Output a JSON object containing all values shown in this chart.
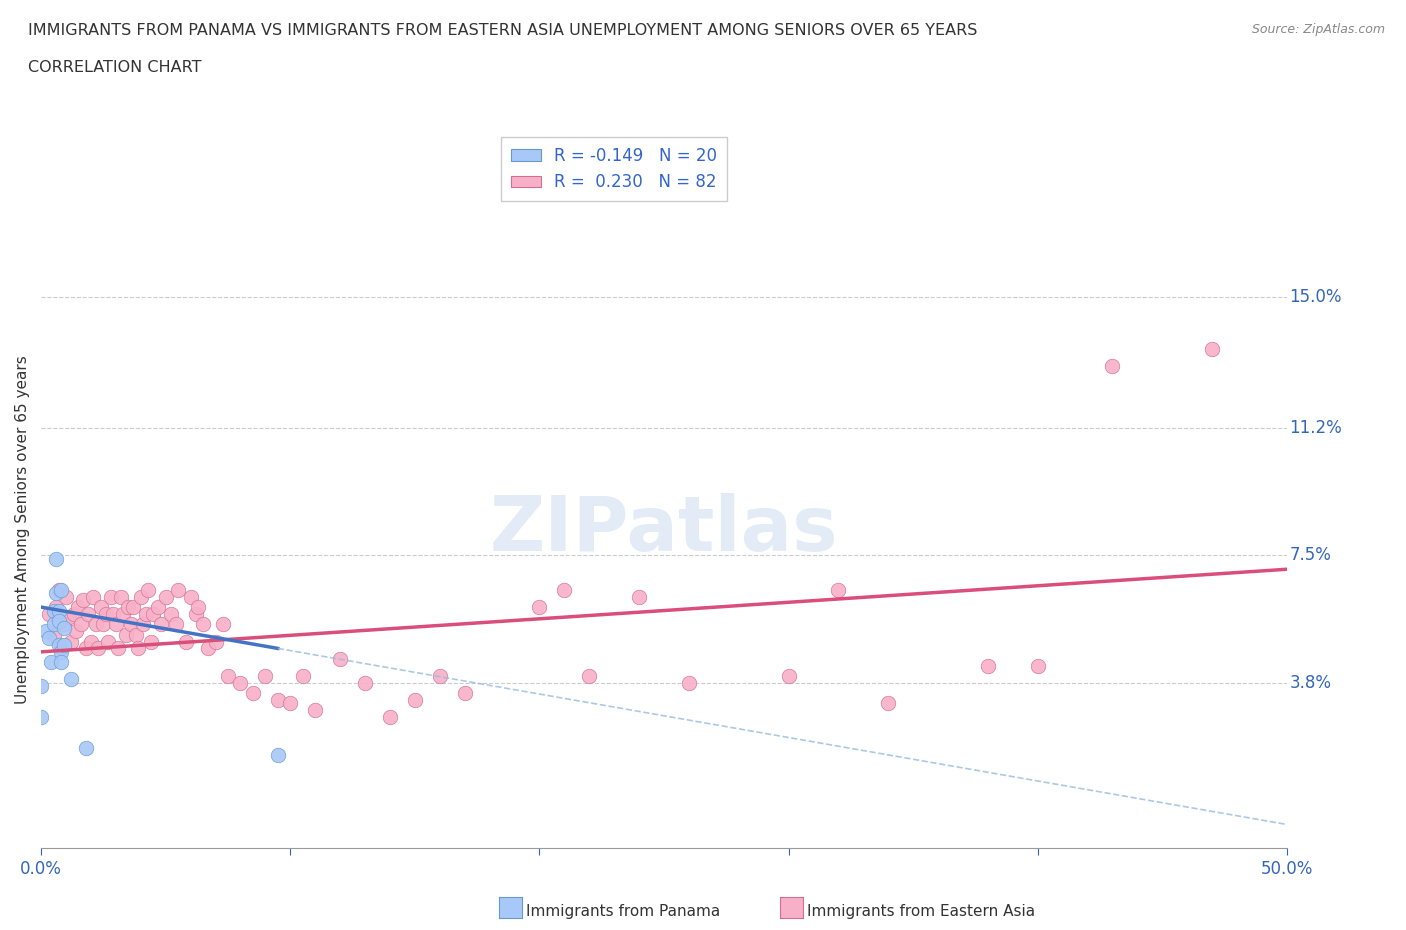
{
  "title_line1": "IMMIGRANTS FROM PANAMA VS IMMIGRANTS FROM EASTERN ASIA UNEMPLOYMENT AMONG SENIORS OVER 65 YEARS",
  "title_line2": "CORRELATION CHART",
  "source_text": "Source: ZipAtlas.com",
  "ylabel": "Unemployment Among Seniors over 65 years",
  "xlim": [
    0.0,
    0.5
  ],
  "ylim": [
    -0.01,
    0.175
  ],
  "ytick_positions": [
    0.038,
    0.075,
    0.112,
    0.15
  ],
  "ytick_labels": [
    "3.8%",
    "7.5%",
    "11.2%",
    "15.0%"
  ],
  "watermark": "ZIPatlas",
  "panama_color": "#a8c8f8",
  "panama_edge_color": "#6699cc",
  "eastern_color": "#f8b0c8",
  "eastern_edge_color": "#d07090",
  "panama_line_color": "#4472c4",
  "panama_dash_color": "#99bbdd",
  "eastern_line_color": "#d94f7a",
  "grid_color": "#cccccc",
  "panama_scatter_x": [
    0.0,
    0.0,
    0.002,
    0.003,
    0.004,
    0.005,
    0.005,
    0.006,
    0.006,
    0.007,
    0.007,
    0.007,
    0.008,
    0.008,
    0.008,
    0.009,
    0.009,
    0.012,
    0.018,
    0.095
  ],
  "panama_scatter_y": [
    0.037,
    0.028,
    0.053,
    0.051,
    0.044,
    0.059,
    0.055,
    0.074,
    0.064,
    0.059,
    0.056,
    0.049,
    0.047,
    0.044,
    0.065,
    0.054,
    0.049,
    0.039,
    0.019,
    0.017
  ],
  "eastern_scatter_x": [
    0.003,
    0.005,
    0.006,
    0.007,
    0.008,
    0.009,
    0.01,
    0.011,
    0.012,
    0.013,
    0.014,
    0.015,
    0.016,
    0.017,
    0.018,
    0.019,
    0.02,
    0.021,
    0.022,
    0.023,
    0.024,
    0.025,
    0.026,
    0.027,
    0.028,
    0.029,
    0.03,
    0.031,
    0.032,
    0.033,
    0.034,
    0.035,
    0.036,
    0.037,
    0.038,
    0.039,
    0.04,
    0.041,
    0.042,
    0.043,
    0.044,
    0.045,
    0.047,
    0.048,
    0.05,
    0.052,
    0.054,
    0.055,
    0.058,
    0.06,
    0.062,
    0.063,
    0.065,
    0.067,
    0.07,
    0.073,
    0.075,
    0.08,
    0.085,
    0.09,
    0.095,
    0.1,
    0.105,
    0.11,
    0.12,
    0.13,
    0.14,
    0.15,
    0.16,
    0.17,
    0.2,
    0.21,
    0.22,
    0.24,
    0.26,
    0.3,
    0.32,
    0.34,
    0.38,
    0.4,
    0.43,
    0.47
  ],
  "eastern_scatter_y": [
    0.058,
    0.052,
    0.06,
    0.065,
    0.048,
    0.055,
    0.063,
    0.057,
    0.05,
    0.058,
    0.053,
    0.06,
    0.055,
    0.062,
    0.048,
    0.058,
    0.05,
    0.063,
    0.055,
    0.048,
    0.06,
    0.055,
    0.058,
    0.05,
    0.063,
    0.058,
    0.055,
    0.048,
    0.063,
    0.058,
    0.052,
    0.06,
    0.055,
    0.06,
    0.052,
    0.048,
    0.063,
    0.055,
    0.058,
    0.065,
    0.05,
    0.058,
    0.06,
    0.055,
    0.063,
    0.058,
    0.055,
    0.065,
    0.05,
    0.063,
    0.058,
    0.06,
    0.055,
    0.048,
    0.05,
    0.055,
    0.04,
    0.038,
    0.035,
    0.04,
    0.033,
    0.032,
    0.04,
    0.03,
    0.045,
    0.038,
    0.028,
    0.033,
    0.04,
    0.035,
    0.06,
    0.065,
    0.04,
    0.063,
    0.038,
    0.04,
    0.065,
    0.032,
    0.043,
    0.043,
    0.13,
    0.135
  ],
  "eastern_line_x0": 0.0,
  "eastern_line_y0": 0.047,
  "eastern_line_x1": 0.5,
  "eastern_line_y1": 0.071,
  "panama_line_x0": 0.0,
  "panama_line_y0": 0.06,
  "panama_line_x1": 0.095,
  "panama_line_y1": 0.048
}
